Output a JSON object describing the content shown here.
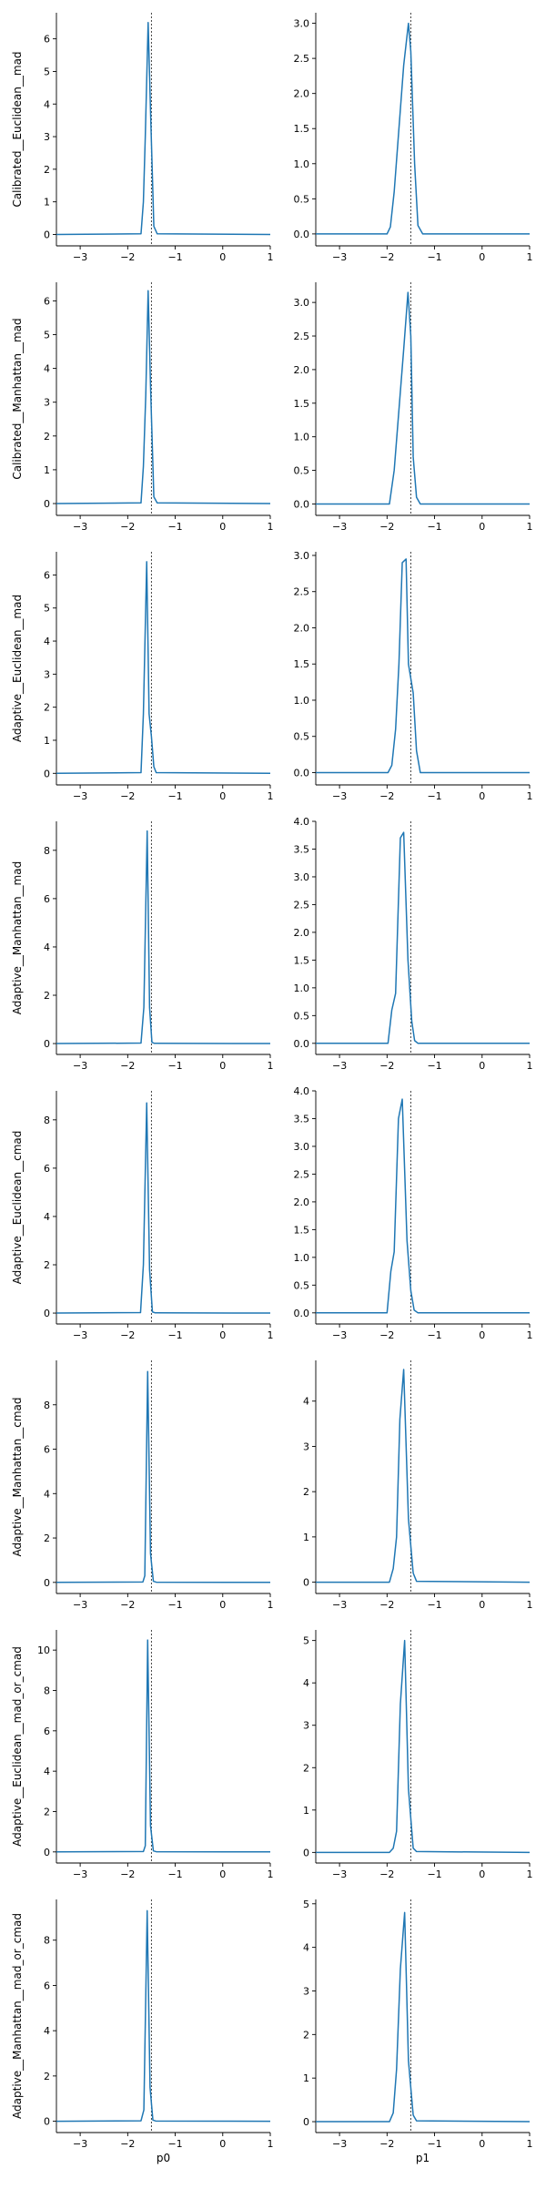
{
  "colors": {
    "line": "#1f77b4",
    "axis": "#000000",
    "ref": "#444444"
  },
  "chart_data": {
    "type": "line",
    "grid": false,
    "legend": "none",
    "layout": {
      "rows": 8,
      "cols": 2
    },
    "xlabels": [
      "p0",
      "p1"
    ],
    "reference_line_x": -1.5,
    "xlim": [
      -3.5,
      1
    ],
    "xticks": [
      -3,
      -2,
      -1,
      0,
      1
    ],
    "x": [
      -3.5,
      -1.7,
      -1.6,
      -1.5,
      -1.45,
      -1.4,
      1
    ],
    "rows": [
      {
        "ylabel": "Calibrated__Euclidean__mad",
        "panels": [
          {
            "ylim": [
              -0.35,
              6.8
            ],
            "yticks": [
              0,
              1,
              2,
              3,
              4,
              5,
              6
            ],
            "points": [
              [
                -3.5,
                0
              ],
              [
                -1.72,
                0.02
              ],
              [
                -1.67,
                1.0
              ],
              [
                -1.63,
                3.0
              ],
              [
                -1.57,
                6.5
              ],
              [
                -1.52,
                3.8
              ],
              [
                -1.45,
                0.25
              ],
              [
                -1.38,
                0.02
              ],
              [
                1,
                0
              ]
            ]
          },
          {
            "ylim": [
              -0.17,
              3.15
            ],
            "yticks": [
              0,
              0.5,
              1,
              1.5,
              2,
              2.5,
              3
            ],
            "points": [
              [
                -3.5,
                0
              ],
              [
                -2.0,
                0
              ],
              [
                -1.93,
                0.1
              ],
              [
                -1.85,
                0.6
              ],
              [
                -1.75,
                1.5
              ],
              [
                -1.65,
                2.4
              ],
              [
                -1.55,
                3.0
              ],
              [
                -1.5,
                2.6
              ],
              [
                -1.42,
                1.0
              ],
              [
                -1.35,
                0.12
              ],
              [
                -1.25,
                0
              ],
              [
                1,
                0
              ]
            ]
          }
        ]
      },
      {
        "ylabel": "Calibrated__Manhattan__mad",
        "panels": [
          {
            "ylim": [
              -0.35,
              6.55
            ],
            "yticks": [
              0,
              1,
              2,
              3,
              4,
              5,
              6
            ],
            "points": [
              [
                -3.5,
                0
              ],
              [
                -1.72,
                0.02
              ],
              [
                -1.67,
                1.1
              ],
              [
                -1.62,
                3.2
              ],
              [
                -1.57,
                6.3
              ],
              [
                -1.52,
                3.5
              ],
              [
                -1.45,
                0.2
              ],
              [
                -1.38,
                0.02
              ],
              [
                1,
                0
              ]
            ]
          },
          {
            "ylim": [
              -0.17,
              3.3
            ],
            "yticks": [
              0,
              0.5,
              1,
              1.5,
              2,
              2.5,
              3
            ],
            "points": [
              [
                -3.5,
                0
              ],
              [
                -1.95,
                0
              ],
              [
                -1.85,
                0.5
              ],
              [
                -1.75,
                1.4
              ],
              [
                -1.65,
                2.3
              ],
              [
                -1.56,
                3.15
              ],
              [
                -1.5,
                2.5
              ],
              [
                -1.45,
                0.7
              ],
              [
                -1.38,
                0.1
              ],
              [
                -1.3,
                0
              ],
              [
                1,
                0
              ]
            ]
          }
        ]
      },
      {
        "ylabel": "Adaptive__Euclidean__mad",
        "panels": [
          {
            "ylim": [
              -0.35,
              6.7
            ],
            "yticks": [
              0,
              1,
              2,
              3,
              4,
              5,
              6
            ],
            "points": [
              [
                -3.5,
                0
              ],
              [
                -1.72,
                0.02
              ],
              [
                -1.67,
                1.8
              ],
              [
                -1.6,
                6.4
              ],
              [
                -1.55,
                1.8
              ],
              [
                -1.5,
                1.1
              ],
              [
                -1.45,
                0.2
              ],
              [
                -1.4,
                0.02
              ],
              [
                1,
                0
              ]
            ]
          },
          {
            "ylim": [
              -0.17,
              3.05
            ],
            "yticks": [
              0,
              0.5,
              1,
              1.5,
              2,
              2.5,
              3
            ],
            "points": [
              [
                -3.5,
                0
              ],
              [
                -1.98,
                0
              ],
              [
                -1.9,
                0.1
              ],
              [
                -1.82,
                0.6
              ],
              [
                -1.75,
                1.5
              ],
              [
                -1.68,
                2.9
              ],
              [
                -1.6,
                2.95
              ],
              [
                -1.55,
                1.5
              ],
              [
                -1.45,
                1.1
              ],
              [
                -1.38,
                0.3
              ],
              [
                -1.3,
                0
              ],
              [
                1,
                0
              ]
            ]
          }
        ]
      },
      {
        "ylabel": "Adaptive__Manhattan__mad",
        "panels": [
          {
            "ylim": [
              -0.45,
              9.2
            ],
            "yticks": [
              0,
              2,
              4,
              6,
              8
            ],
            "points": [
              [
                -3.5,
                0
              ],
              [
                -1.72,
                0.02
              ],
              [
                -1.66,
                1.5
              ],
              [
                -1.59,
                8.8
              ],
              [
                -1.54,
                1.5
              ],
              [
                -1.49,
                0.05
              ],
              [
                -1.44,
                0.01
              ],
              [
                1,
                0
              ]
            ]
          },
          {
            "ylim": [
              -0.2,
              4.0
            ],
            "yticks": [
              0,
              0.5,
              1,
              1.5,
              2,
              2.5,
              3,
              3.5,
              4
            ],
            "points": [
              [
                -3.5,
                0
              ],
              [
                -1.98,
                0
              ],
              [
                -1.9,
                0.6
              ],
              [
                -1.82,
                0.9
              ],
              [
                -1.72,
                3.7
              ],
              [
                -1.65,
                3.8
              ],
              [
                -1.56,
                1.5
              ],
              [
                -1.48,
                0.4
              ],
              [
                -1.42,
                0.05
              ],
              [
                -1.35,
                0
              ],
              [
                1,
                0
              ]
            ]
          }
        ]
      },
      {
        "ylabel": "Adaptive__Euclidean__cmad",
        "panels": [
          {
            "ylim": [
              -0.45,
              9.2
            ],
            "yticks": [
              0,
              2,
              4,
              6,
              8
            ],
            "points": [
              [
                -3.5,
                0
              ],
              [
                -1.73,
                0.02
              ],
              [
                -1.67,
                2.0
              ],
              [
                -1.6,
                8.7
              ],
              [
                -1.54,
                1.8
              ],
              [
                -1.48,
                0.05
              ],
              [
                -1.42,
                0.01
              ],
              [
                1,
                0
              ]
            ]
          },
          {
            "ylim": [
              -0.2,
              4.0
            ],
            "yticks": [
              0,
              0.5,
              1,
              1.5,
              2,
              2.5,
              3,
              3.5,
              4
            ],
            "points": [
              [
                -3.5,
                0
              ],
              [
                -2.0,
                0
              ],
              [
                -1.92,
                0.75
              ],
              [
                -1.85,
                1.1
              ],
              [
                -1.76,
                3.5
              ],
              [
                -1.68,
                3.85
              ],
              [
                -1.58,
                1.3
              ],
              [
                -1.5,
                0.4
              ],
              [
                -1.43,
                0.05
              ],
              [
                -1.35,
                0
              ],
              [
                1,
                0
              ]
            ]
          }
        ]
      },
      {
        "ylabel": "Adaptive__Manhattan__cmad",
        "panels": [
          {
            "ylim": [
              -0.5,
              10.0
            ],
            "yticks": [
              0,
              2,
              4,
              6,
              8
            ],
            "points": [
              [
                -3.5,
                0
              ],
              [
                -1.68,
                0.02
              ],
              [
                -1.64,
                0.3
              ],
              [
                -1.58,
                9.5
              ],
              [
                -1.52,
                1.3
              ],
              [
                -1.46,
                0.05
              ],
              [
                -1.4,
                0.01
              ],
              [
                1,
                0
              ]
            ]
          },
          {
            "ylim": [
              -0.25,
              4.9
            ],
            "yticks": [
              0,
              1,
              2,
              3,
              4
            ],
            "points": [
              [
                -3.5,
                0
              ],
              [
                -1.95,
                0
              ],
              [
                -1.87,
                0.3
              ],
              [
                -1.8,
                1.0
              ],
              [
                -1.73,
                3.6
              ],
              [
                -1.65,
                4.7
              ],
              [
                -1.55,
                1.4
              ],
              [
                -1.45,
                0.2
              ],
              [
                -1.38,
                0.02
              ],
              [
                1,
                0
              ]
            ]
          }
        ]
      },
      {
        "ylabel": "Adaptive__Euclidean__mad_or_cmad",
        "panels": [
          {
            "ylim": [
              -0.55,
              11.0
            ],
            "yticks": [
              0,
              2,
              4,
              6,
              8,
              10
            ],
            "points": [
              [
                -3.5,
                0
              ],
              [
                -1.67,
                0.02
              ],
              [
                -1.63,
                0.3
              ],
              [
                -1.58,
                10.5
              ],
              [
                -1.52,
                1.3
              ],
              [
                -1.46,
                0.05
              ],
              [
                -1.4,
                0.01
              ],
              [
                1,
                0
              ]
            ]
          },
          {
            "ylim": [
              -0.25,
              5.25
            ],
            "yticks": [
              0,
              1,
              2,
              3,
              4,
              5
            ],
            "points": [
              [
                -3.5,
                0
              ],
              [
                -1.95,
                0
              ],
              [
                -1.87,
                0.1
              ],
              [
                -1.8,
                0.5
              ],
              [
                -1.72,
                3.5
              ],
              [
                -1.63,
                5.0
              ],
              [
                -1.55,
                1.5
              ],
              [
                -1.45,
                0.1
              ],
              [
                -1.38,
                0.02
              ],
              [
                1,
                0
              ]
            ]
          }
        ]
      },
      {
        "ylabel": "Adaptive__Manhattan__mad_or_cmad",
        "panels": [
          {
            "ylim": [
              -0.5,
              9.8
            ],
            "yticks": [
              0,
              2,
              4,
              6,
              8
            ],
            "points": [
              [
                -3.5,
                0
              ],
              [
                -1.72,
                0.02
              ],
              [
                -1.66,
                0.5
              ],
              [
                -1.59,
                9.3
              ],
              [
                -1.53,
                1.5
              ],
              [
                -1.47,
                0.05
              ],
              [
                -1.41,
                0.01
              ],
              [
                1,
                0
              ]
            ]
          },
          {
            "ylim": [
              -0.25,
              5.1
            ],
            "yticks": [
              0,
              1,
              2,
              3,
              4,
              5
            ],
            "points": [
              [
                -3.5,
                0
              ],
              [
                -1.95,
                0
              ],
              [
                -1.87,
                0.2
              ],
              [
                -1.8,
                1.2
              ],
              [
                -1.72,
                3.5
              ],
              [
                -1.63,
                4.8
              ],
              [
                -1.55,
                1.4
              ],
              [
                -1.45,
                0.15
              ],
              [
                -1.38,
                0.02
              ],
              [
                1,
                0
              ]
            ]
          }
        ]
      }
    ]
  }
}
